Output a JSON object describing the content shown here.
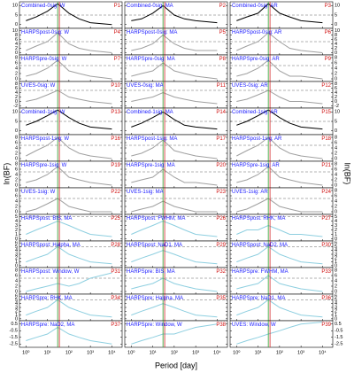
{
  "figure": {
    "xlabel": "Period [day]",
    "ylabel": "ln(BF)",
    "x": [
      1,
      3,
      10,
      30,
      100,
      300,
      1000,
      10000
    ],
    "xlim": [
      0.5,
      30000
    ],
    "xticks": [
      {
        "value": 1,
        "label": "10⁰"
      },
      {
        "value": 10,
        "label": "10¹"
      },
      {
        "value": 100,
        "label": "10²"
      },
      {
        "value": 1000,
        "label": "10³"
      },
      {
        "value": 10000,
        "label": "10⁴"
      }
    ]
  },
  "chart_data": [
    {
      "type": "line",
      "title": "Combined-0sig: W",
      "tag": "P1",
      "color": "#000000",
      "values": [
        2,
        4,
        7,
        11,
        6,
        3,
        1,
        0
      ],
      "ylim": [
        -2,
        12
      ],
      "yticks": [
        0,
        5,
        10
      ],
      "threshold": 5,
      "vlines": [
        30,
        36
      ]
    },
    {
      "type": "line",
      "title": "Combined-0sig: MA",
      "tag": "P2",
      "color": "#000000",
      "values": [
        2,
        3,
        6,
        10,
        5,
        3,
        2,
        1
      ],
      "ylim": [
        -2,
        12
      ],
      "yticks": [
        0,
        5,
        10
      ],
      "threshold": 5,
      "vlines": [
        30,
        36
      ]
    },
    {
      "type": "line",
      "title": "Combined-0sig: AR",
      "tag": "P3",
      "color": "#000000",
      "values": [
        2,
        4,
        6,
        11,
        6,
        4,
        2,
        1
      ],
      "ylim": [
        -2,
        12
      ],
      "yticks": [
        0,
        5,
        10
      ],
      "threshold": 5,
      "vlines": [
        30,
        36
      ]
    },
    {
      "type": "line",
      "title": "HARPSpost-0sig: W",
      "tag": "P4",
      "color": "#a0a0a0",
      "values": [
        1,
        3,
        5,
        9,
        4,
        2,
        1,
        0
      ],
      "ylim": [
        -1,
        11
      ],
      "yticks": [
        0,
        2,
        4,
        6,
        8,
        10
      ],
      "threshold": 5,
      "vlines": [
        30,
        36
      ]
    },
    {
      "type": "line",
      "title": "HARPSpost-0sig: MA",
      "tag": "P5",
      "color": "#a0a0a0",
      "values": [
        1,
        2,
        4,
        8,
        4,
        2,
        1,
        1
      ],
      "ylim": [
        -1,
        11
      ],
      "yticks": [
        0,
        2,
        4,
        6,
        8,
        10
      ],
      "threshold": 5,
      "vlines": [
        30,
        36
      ]
    },
    {
      "type": "line",
      "title": "HARPSpost-0sig: AR",
      "tag": "P6",
      "color": "#a0a0a0",
      "values": [
        1,
        3,
        5,
        9,
        5,
        2,
        1,
        0
      ],
      "ylim": [
        -1,
        11
      ],
      "yticks": [
        0,
        2,
        4,
        6,
        8,
        10
      ],
      "threshold": 5,
      "vlines": [
        30,
        36
      ]
    },
    {
      "type": "line",
      "title": "HARPSpre-0sig: W",
      "tag": "P7",
      "color": "#a0a0a0",
      "values": [
        1,
        2,
        4,
        7,
        3,
        2,
        1,
        0
      ],
      "ylim": [
        -1,
        9
      ],
      "yticks": [
        0,
        2,
        4,
        6,
        8
      ],
      "threshold": 5,
      "vlines": [
        30,
        36
      ]
    },
    {
      "type": "line",
      "title": "HARPSpre-0sig: MA",
      "tag": "P8",
      "color": "#a0a0a0",
      "values": [
        1,
        2,
        3,
        6,
        3,
        2,
        1,
        0
      ],
      "ylim": [
        -1,
        9
      ],
      "yticks": [
        0,
        2,
        4,
        6,
        8
      ],
      "threshold": 5,
      "vlines": [
        30,
        36
      ]
    },
    {
      "type": "line",
      "title": "HARPSpre-0sig: AR",
      "tag": "P9",
      "color": "#a0a0a0",
      "values": [
        1,
        2,
        4,
        7,
        3,
        1,
        1,
        0
      ],
      "ylim": [
        -1,
        9
      ],
      "yticks": [
        0,
        2,
        4,
        6,
        8
      ],
      "threshold": 5,
      "vlines": [
        30,
        36
      ]
    },
    {
      "type": "line",
      "title": "UVES-0sig: W",
      "tag": "P10",
      "color": "#a0a0a0",
      "values": [
        0,
        1,
        3,
        5,
        2,
        1,
        0,
        -1
      ],
      "ylim": [
        -3,
        9
      ],
      "yticks": [
        -2,
        0,
        2,
        4,
        6,
        8
      ],
      "threshold": 5,
      "vlines": [
        30,
        36
      ]
    },
    {
      "type": "line",
      "title": "UVES-0sig: MA",
      "tag": "P11",
      "color": "#a0a0a0",
      "values": [
        0,
        1,
        2,
        4,
        2,
        1,
        0,
        -1
      ],
      "ylim": [
        -3,
        9
      ],
      "yticks": [
        -2,
        0,
        2,
        4,
        6,
        8
      ],
      "threshold": 5,
      "vlines": [
        30,
        36
      ]
    },
    {
      "type": "line",
      "title": "UVES-0sig: AR",
      "tag": "P12",
      "color": "#a0a0a0",
      "values": [
        0,
        1,
        3,
        5,
        2,
        0,
        0,
        -1
      ],
      "ylim": [
        -3,
        9
      ],
      "yticks": [
        -2,
        0,
        2,
        4,
        6,
        8
      ],
      "threshold": 5,
      "vlines": [
        30,
        36
      ]
    },
    {
      "type": "line",
      "title": "Combined-1sig: W",
      "tag": "P13",
      "color": "#000000",
      "values": [
        3,
        5,
        8,
        11,
        7,
        4,
        2,
        1
      ],
      "ylim": [
        -2,
        12
      ],
      "yticks": [
        0,
        5,
        10
      ],
      "threshold": 5,
      "vlines": [
        30,
        36
      ]
    },
    {
      "type": "line",
      "title": "Combined-1sig: MA",
      "tag": "P14",
      "color": "#000000",
      "values": [
        2,
        4,
        7,
        10,
        6,
        3,
        2,
        1
      ],
      "ylim": [
        -2,
        12
      ],
      "yticks": [
        0,
        5,
        10
      ],
      "threshold": 5,
      "vlines": [
        30,
        36
      ]
    },
    {
      "type": "line",
      "title": "Combined-1sig: AR",
      "tag": "P15",
      "color": "#000000",
      "values": [
        3,
        5,
        8,
        11,
        7,
        4,
        2,
        1
      ],
      "ylim": [
        -2,
        12
      ],
      "yticks": [
        0,
        5,
        10
      ],
      "threshold": 5,
      "vlines": [
        30,
        36
      ]
    },
    {
      "type": "line",
      "title": "HARPSpost-1sig: W",
      "tag": "P16",
      "color": "#a0a0a0",
      "values": [
        1,
        3,
        5,
        8,
        4,
        2,
        1,
        0
      ],
      "ylim": [
        -1,
        9
      ],
      "yticks": [
        0,
        2,
        4,
        6,
        8
      ],
      "threshold": 5,
      "vlines": [
        30,
        36
      ]
    },
    {
      "type": "line",
      "title": "HARPSpost-1sig: MA",
      "tag": "P17",
      "color": "#a0a0a0",
      "values": [
        1,
        2,
        4,
        7,
        3,
        2,
        1,
        0
      ],
      "ylim": [
        -1,
        9
      ],
      "yticks": [
        0,
        2,
        4,
        6,
        8
      ],
      "threshold": 5,
      "vlines": [
        30,
        36
      ]
    },
    {
      "type": "line",
      "title": "HARPSpost-1sig: AR",
      "tag": "P18",
      "color": "#a0a0a0",
      "values": [
        1,
        3,
        5,
        8,
        4,
        2,
        1,
        0
      ],
      "ylim": [
        -1,
        9
      ],
      "yticks": [
        0,
        2,
        4,
        6,
        8
      ],
      "threshold": 5,
      "vlines": [
        30,
        36
      ]
    },
    {
      "type": "line",
      "title": "HARPSpre-1sig: W",
      "tag": "P19",
      "color": "#a0a0a0",
      "values": [
        1,
        2,
        4,
        7,
        3,
        2,
        1,
        0
      ],
      "ylim": [
        -1,
        9
      ],
      "yticks": [
        0,
        2,
        4,
        6,
        8
      ],
      "threshold": 5,
      "vlines": [
        30,
        36
      ]
    },
    {
      "type": "line",
      "title": "HARPSpre-1sig: MA",
      "tag": "P20",
      "color": "#a0a0a0",
      "values": [
        1,
        2,
        3,
        6,
        3,
        1,
        1,
        0
      ],
      "ylim": [
        -1,
        9
      ],
      "yticks": [
        0,
        2,
        4,
        6,
        8
      ],
      "threshold": 5,
      "vlines": [
        30,
        36
      ]
    },
    {
      "type": "line",
      "title": "HARPSpre-1sig: AR",
      "tag": "P21",
      "color": "#a0a0a0",
      "values": [
        1,
        2,
        4,
        7,
        3,
        2,
        1,
        0
      ],
      "ylim": [
        -1,
        9
      ],
      "yticks": [
        0,
        2,
        4,
        6,
        8
      ],
      "threshold": 5,
      "vlines": [
        30,
        36
      ]
    },
    {
      "type": "line",
      "title": "UVES-1sig: W",
      "tag": "P22",
      "color": "#a0a0a0",
      "values": [
        0,
        1,
        3,
        5,
        2,
        1,
        0,
        0
      ],
      "ylim": [
        -1,
        9
      ],
      "yticks": [
        0,
        2,
        4,
        6,
        8
      ],
      "threshold": 5,
      "vlines": [
        30,
        36
      ]
    },
    {
      "type": "line",
      "title": "UVES-1sig: MA",
      "tag": "P23",
      "color": "#a0a0a0",
      "values": [
        0,
        1,
        2,
        4,
        2,
        1,
        0,
        0
      ],
      "ylim": [
        -1,
        9
      ],
      "yticks": [
        0,
        2,
        4,
        6,
        8
      ],
      "threshold": 5,
      "vlines": [
        30,
        36
      ]
    },
    {
      "type": "line",
      "title": "UVES-1sig: AR",
      "tag": "P24",
      "color": "#a0a0a0",
      "values": [
        0,
        1,
        3,
        5,
        2,
        1,
        0,
        0
      ],
      "ylim": [
        -1,
        9
      ],
      "yticks": [
        0,
        2,
        4,
        6,
        8
      ],
      "threshold": 5,
      "vlines": [
        30,
        36
      ]
    },
    {
      "type": "line",
      "title": "HARPSpost: BIS, MA",
      "tag": "P25",
      "color": "#8ecfe0",
      "values": [
        1,
        2,
        3,
        4,
        3,
        2,
        1,
        0.5
      ],
      "ylim": [
        -0.5,
        5.5
      ],
      "yticks": [
        0,
        1,
        2,
        3,
        4,
        5
      ],
      "threshold": 5,
      "vlines": [
        30,
        36
      ]
    },
    {
      "type": "line",
      "title": "HARPSpost: FWHM, MA",
      "tag": "P26",
      "color": "#8ecfe0",
      "values": [
        1,
        2,
        3,
        4,
        3,
        2,
        1,
        0.5
      ],
      "ylim": [
        -0.5,
        5.5
      ],
      "yticks": [
        0,
        1,
        2,
        3,
        4,
        5
      ],
      "threshold": 5,
      "vlines": [
        30,
        36
      ]
    },
    {
      "type": "line",
      "title": "HARPSpost: RHK, MA",
      "tag": "P27",
      "color": "#8ecfe0",
      "values": [
        1,
        2,
        2,
        3,
        2,
        1,
        1,
        0.5
      ],
      "ylim": [
        -0.5,
        5.5
      ],
      "yticks": [
        0,
        1,
        2,
        3,
        4,
        5
      ],
      "threshold": 5,
      "vlines": [
        30,
        36
      ]
    },
    {
      "type": "line",
      "title": "HARPSpost: Halpha, MA",
      "tag": "P28",
      "color": "#8ecfe0",
      "values": [
        1,
        2,
        3,
        5,
        3,
        2,
        1,
        0.5
      ],
      "ylim": [
        -0.5,
        6.5
      ],
      "yticks": [
        0,
        1,
        2,
        3,
        4,
        5,
        6
      ],
      "threshold": 5,
      "vlines": [
        30,
        36
      ]
    },
    {
      "type": "line",
      "title": "HARPSpost: NaD1, MA",
      "tag": "P29",
      "color": "#8ecfe0",
      "values": [
        1,
        2,
        3,
        4,
        3,
        2,
        1,
        0.5
      ],
      "ylim": [
        -0.5,
        6.5
      ],
      "yticks": [
        0,
        1,
        2,
        3,
        4,
        5,
        6
      ],
      "threshold": 5,
      "vlines": [
        30,
        36
      ]
    },
    {
      "type": "line",
      "title": "HARPSpost: NaD2, MA",
      "tag": "P30",
      "color": "#8ecfe0",
      "values": [
        1,
        2,
        3,
        5,
        3,
        2,
        1,
        0.5
      ],
      "ylim": [
        -0.5,
        6.5
      ],
      "yticks": [
        0,
        1,
        2,
        3,
        4,
        5,
        6
      ],
      "threshold": 5,
      "vlines": [
        30,
        36
      ]
    },
    {
      "type": "line",
      "title": "HARPSpost: Window, W",
      "tag": "P31",
      "color": "#8ecfe0",
      "values": [
        0,
        1,
        2,
        3,
        2,
        3,
        5,
        7
      ],
      "ylim": [
        -1,
        9
      ],
      "yticks": [
        0,
        2,
        4,
        6,
        8
      ],
      "threshold": 5,
      "vlines": [
        30,
        36
      ]
    },
    {
      "type": "line",
      "title": "HARPSpre: BIS, MA",
      "tag": "P32",
      "color": "#8ecfe0",
      "values": [
        1,
        2,
        3,
        5,
        3,
        2,
        1,
        0
      ],
      "ylim": [
        -1,
        9
      ],
      "yticks": [
        0,
        2,
        4,
        6,
        8
      ],
      "threshold": 5,
      "vlines": [
        30,
        36
      ]
    },
    {
      "type": "line",
      "title": "HARPSpre: FWHM, MA",
      "tag": "P33",
      "color": "#8ecfe0",
      "values": [
        1,
        2,
        3,
        6,
        3,
        2,
        1,
        0
      ],
      "ylim": [
        -1,
        9
      ],
      "yticks": [
        0,
        2,
        4,
        6,
        8
      ],
      "threshold": 5,
      "vlines": [
        30,
        36
      ]
    },
    {
      "type": "line",
      "title": "HARPSpre: RHK, MA",
      "tag": "P34",
      "color": "#8ecfe0",
      "values": [
        1,
        2,
        3,
        5,
        3,
        2,
        1,
        0.5
      ],
      "ylim": [
        -0.5,
        6.5
      ],
      "yticks": [
        0,
        1,
        2,
        3,
        4,
        5,
        6
      ],
      "threshold": 5,
      "vlines": [
        30,
        36
      ]
    },
    {
      "type": "line",
      "title": "HARPSpre: Halpha, MA",
      "tag": "P35",
      "color": "#8ecfe0",
      "values": [
        1,
        2,
        3,
        4,
        3,
        2,
        1,
        0.5
      ],
      "ylim": [
        -0.5,
        6.5
      ],
      "yticks": [
        0,
        1,
        2,
        3,
        4,
        5,
        6
      ],
      "threshold": 5,
      "vlines": [
        30,
        36
      ]
    },
    {
      "type": "line",
      "title": "HARPSpre: NaD1, MA",
      "tag": "P36",
      "color": "#8ecfe0",
      "values": [
        1,
        2,
        3,
        5,
        3,
        2,
        1,
        0.5
      ],
      "ylim": [
        -0.5,
        6.5
      ],
      "yticks": [
        0,
        1,
        2,
        3,
        4,
        5,
        6
      ],
      "threshold": 5,
      "vlines": [
        30,
        36
      ]
    },
    {
      "type": "line",
      "title": "HARPSpre: NaD2, MA",
      "tag": "P37",
      "color": "#8ecfe0",
      "values": [
        -2,
        -1.5,
        -1,
        0,
        -1,
        -1.5,
        -2,
        -2.5
      ],
      "ylim": [
        -3,
        1
      ],
      "yticks": [
        -2.5,
        -1.5,
        -0.5,
        0.5
      ],
      "vlines": [
        30,
        36
      ]
    },
    {
      "type": "line",
      "title": "HARPSpre: Window, W",
      "tag": "P38",
      "color": "#8ecfe0",
      "values": [
        -2.5,
        -2,
        -1.5,
        -1,
        -1,
        -0.5,
        0,
        0.5
      ],
      "ylim": [
        -3,
        1
      ],
      "yticks": [
        -2.5,
        -1.5,
        -0.5,
        0.5
      ],
      "vlines": [
        30,
        36
      ]
    },
    {
      "type": "line",
      "title": "UVES: Window, W",
      "tag": "P39",
      "color": "#8ecfe0",
      "values": [
        -2.5,
        -2,
        -1.5,
        -1,
        -0.5,
        0,
        0.5,
        0.8
      ],
      "ylim": [
        -3,
        1
      ],
      "yticks": [
        -2.5,
        -1.5,
        -0.5,
        0.5
      ],
      "vlines": [
        30,
        36
      ]
    }
  ]
}
